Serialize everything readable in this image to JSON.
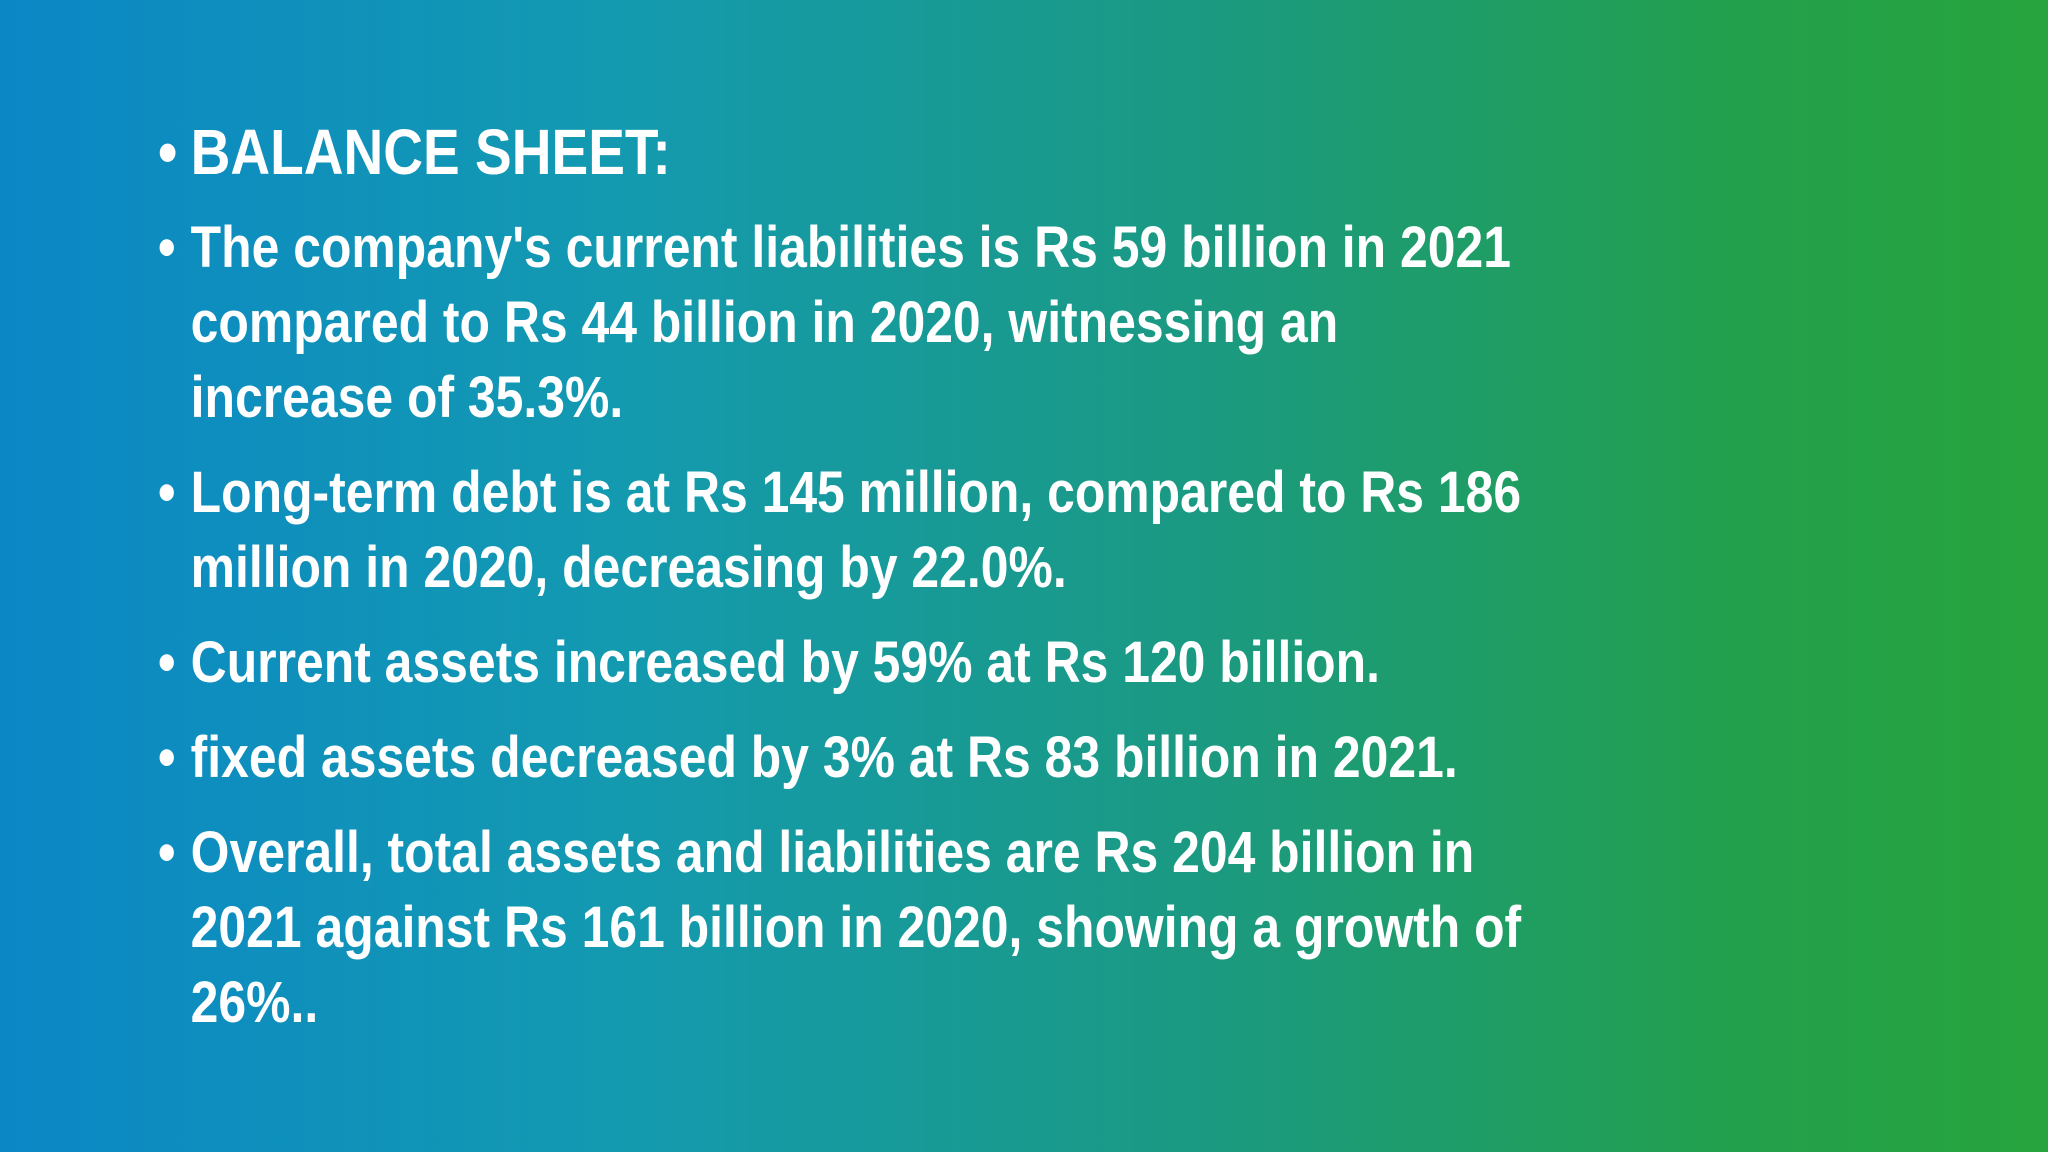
{
  "slide": {
    "bullet_char": "•",
    "items": [
      "BALANCE SHEET:",
      "The company's current liabilities is Rs 59 billion in 2021 compared to Rs 44 billion in 2020, witnessing an increase of 35.3%.",
      "Long-term debt is at Rs 145 million, compared to Rs 186 million in 2020, decreasing by 22.0%.",
      "Current assets increased by 59% at Rs 120 billion.",
      "fixed assets decreased by 3% at Rs 83 billion in 2021.",
      "Overall, total assets and liabilities are Rs 204 billion in 2021 against Rs 161 billion in 2020, showing a growth of 26%.."
    ]
  },
  "colors": {
    "text": "#ffffff",
    "gradient_left": "#0b87c6",
    "gradient_right": "#27a43d"
  }
}
